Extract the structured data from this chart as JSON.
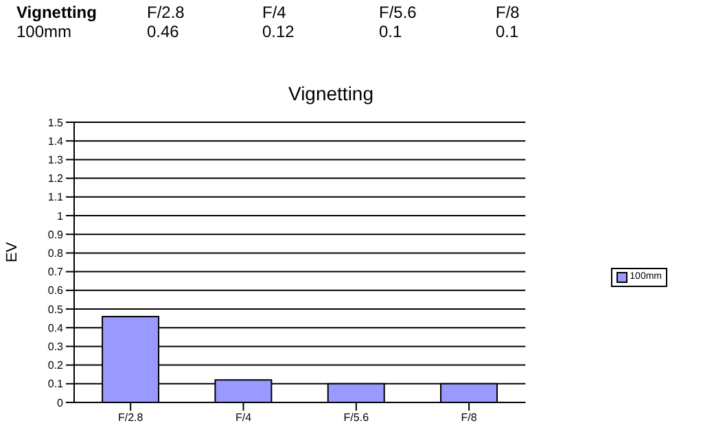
{
  "chart_data": {
    "type": "bar",
    "title": "Vignetting",
    "ylabel": "EV",
    "categories": [
      "F/2.8",
      "F/4",
      "F/5.6",
      "F/8"
    ],
    "series": [
      {
        "name": "100mm",
        "color": "#9999ff",
        "values": [
          0.46,
          0.12,
          0.1,
          0.1
        ]
      }
    ],
    "ylim": [
      0,
      1.5
    ],
    "yticks": [
      0,
      0.1,
      0.2,
      0.3,
      0.4,
      0.5,
      0.6,
      0.7,
      0.8,
      0.9,
      1,
      1.1,
      1.2,
      1.3,
      1.4,
      1.5
    ],
    "grid": "y",
    "legend": "right",
    "data_labels": true
  }
}
